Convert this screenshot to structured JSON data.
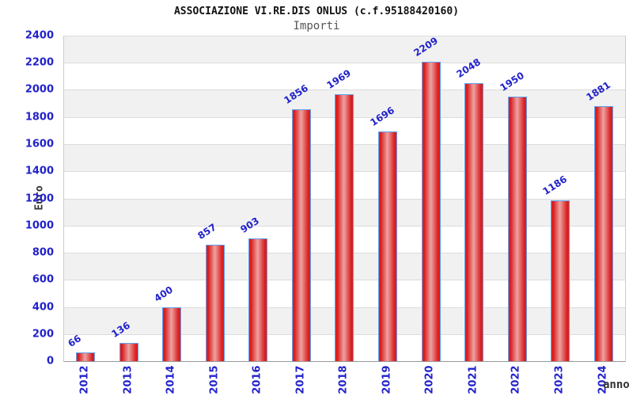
{
  "header": {
    "title": "ASSOCIAZIONE VI.RE.DIS ONLUS (c.f.95188420160)",
    "subtitle": "Importi"
  },
  "colors": {
    "label_blue": "#2222cc",
    "bar_red": "#d81d1d",
    "bar_highlight": "#efa2a2",
    "bar_border": "#5fa0ef",
    "band_gray": "#f1f1f1",
    "gridline": "#dcdcdc",
    "axis_text": "#333333"
  },
  "chart_data": {
    "type": "bar",
    "title": "ASSOCIAZIONE VI.RE.DIS ONLUS (c.f.95188420160)",
    "subtitle": "Importi",
    "categories": [
      "2012",
      "2013",
      "2014",
      "2015",
      "2016",
      "2017",
      "2018",
      "2019",
      "2020",
      "2021",
      "2022",
      "2023",
      "2024"
    ],
    "values": [
      66,
      136,
      400,
      857,
      903,
      1856,
      1969,
      1696,
      2209,
      2048,
      1950,
      1186,
      1881
    ],
    "xlabel": "anno",
    "ylabel": "Euro",
    "ylim": [
      0,
      2400
    ],
    "ytick_step": 200,
    "grid": "horizontal-bands-alternating",
    "legend": "none",
    "bar_label_rotation_deg": -33,
    "x_tick_rotation_deg": -90
  }
}
